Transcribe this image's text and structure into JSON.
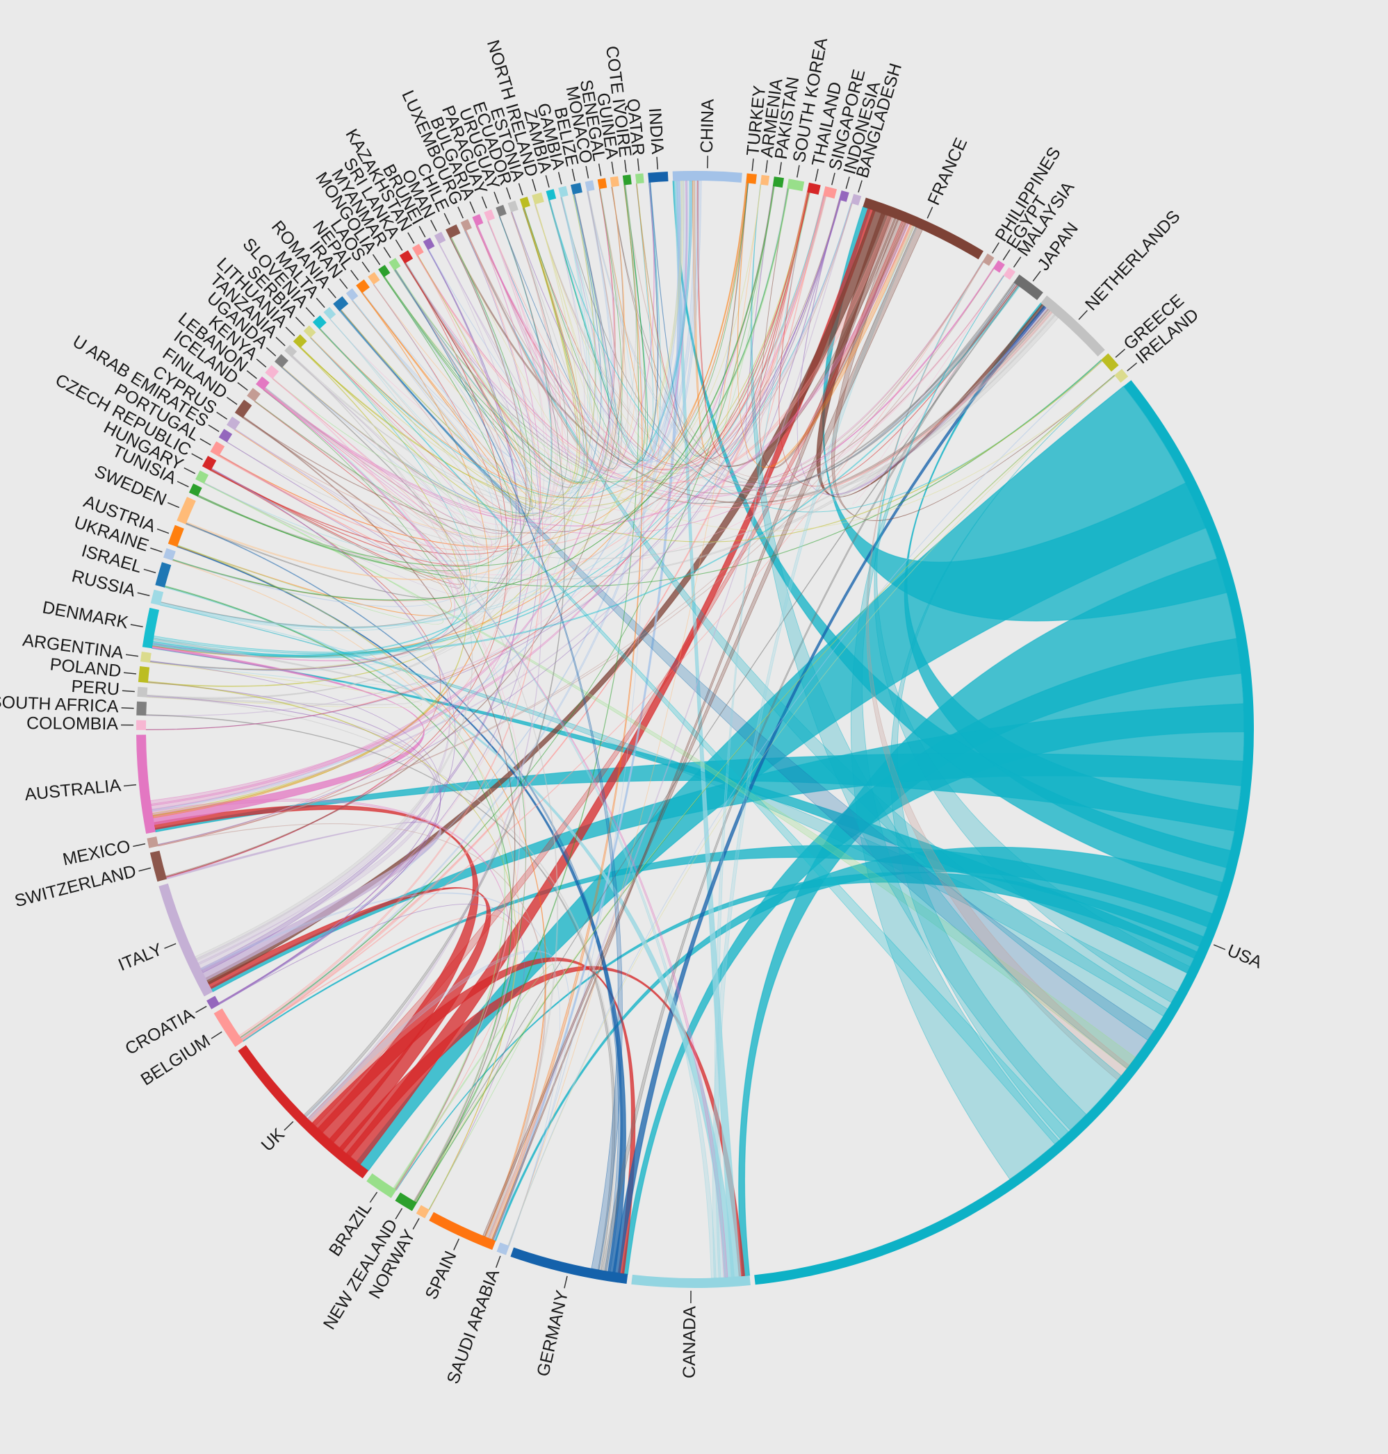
{
  "chart_data": {
    "type": "chord",
    "title": "",
    "nodes": [
      {
        "name": "USA",
        "color": "#0db1c6",
        "weight": 60
      },
      {
        "name": "CANADA",
        "color": "#93d5e1",
        "weight": 6
      },
      {
        "name": "GERMANY",
        "color": "#1562ab",
        "weight": 6
      },
      {
        "name": "SAUDI ARABIA",
        "color": "#aec7e8",
        "weight": 0.5
      },
      {
        "name": "SPAIN",
        "color": "#ff7410",
        "weight": 3.5
      },
      {
        "name": "NORWAY",
        "color": "#ffbb78",
        "weight": 0.5
      },
      {
        "name": "NEW ZEALAND",
        "color": "#2ca02c",
        "weight": 1
      },
      {
        "name": "BRAZIL",
        "color": "#98df8a",
        "weight": 1.5
      },
      {
        "name": "UK",
        "color": "#d62728",
        "weight": 9
      },
      {
        "name": "BELGIUM",
        "color": "#ff9896",
        "weight": 2
      },
      {
        "name": "CROATIA",
        "color": "#9467bd",
        "weight": 0.5
      },
      {
        "name": "ITALY",
        "color": "#c5b0d5",
        "weight": 6
      },
      {
        "name": "SWITZERLAND",
        "color": "#8c564b",
        "weight": 1.5
      },
      {
        "name": "MEXICO",
        "color": "#c49c94",
        "weight": 0.5
      },
      {
        "name": "AUSTRALIA",
        "color": "#e377c2",
        "weight": 5
      },
      {
        "name": "COLOMBIA",
        "color": "#f7b6d2",
        "weight": 0.5
      },
      {
        "name": "SOUTH AFRICA",
        "color": "#7f7f7f",
        "weight": 0.7
      },
      {
        "name": "PERU",
        "color": "#c7c7c7",
        "weight": 0.5
      },
      {
        "name": "POLAND",
        "color": "#bcbd22",
        "weight": 0.8
      },
      {
        "name": "ARGENTINA",
        "color": "#dbdb8d",
        "weight": 0.5
      },
      {
        "name": "DENMARK",
        "color": "#17becf",
        "weight": 2
      },
      {
        "name": "RUSSIA",
        "color": "#9edae5",
        "weight": 0.7
      },
      {
        "name": "ISRAEL",
        "color": "#1f77b4",
        "weight": 1.2
      },
      {
        "name": "UKRAINE",
        "color": "#aec7e8",
        "weight": 0.5
      },
      {
        "name": "AUSTRIA",
        "color": "#ff7f0e",
        "weight": 1
      },
      {
        "name": "SWEDEN",
        "color": "#ffbb78",
        "weight": 1.3
      },
      {
        "name": "TUNISIA",
        "color": "#2ca02c",
        "weight": 0.5
      },
      {
        "name": "HUNGARY",
        "color": "#98df8a",
        "weight": 0.5
      },
      {
        "name": "CZECH REPUBLIC",
        "color": "#d62728",
        "weight": 0.6
      },
      {
        "name": "PORTUGAL",
        "color": "#ff9896",
        "weight": 0.6
      },
      {
        "name": "U ARAB EMIRATES",
        "color": "#9467bd",
        "weight": 0.5
      },
      {
        "name": "CYPRUS",
        "color": "#c5b0d5",
        "weight": 0.5
      },
      {
        "name": "FINLAND",
        "color": "#8c564b",
        "weight": 0.8
      },
      {
        "name": "ICELAND",
        "color": "#c49c94",
        "weight": 0.5
      },
      {
        "name": "LEBANON",
        "color": "#e377c2",
        "weight": 0.5
      },
      {
        "name": "KENYA",
        "color": "#f7b6d2",
        "weight": 0.5
      },
      {
        "name": "UGANDA",
        "color": "#7f7f7f",
        "weight": 0.5
      },
      {
        "name": "TANZANIA",
        "color": "#c7c7c7",
        "weight": 0.4
      },
      {
        "name": "LITHUANIA",
        "color": "#bcbd22",
        "weight": 0.5
      },
      {
        "name": "SERBIA",
        "color": "#dbdb8d",
        "weight": 0.4
      },
      {
        "name": "SLOVENIA",
        "color": "#17becf",
        "weight": 0.5
      },
      {
        "name": "MALTA",
        "color": "#9edae5",
        "weight": 0.4
      },
      {
        "name": "ROMANIA",
        "color": "#1f77b4",
        "weight": 0.6
      },
      {
        "name": "IRAN",
        "color": "#aec7e8",
        "weight": 0.4
      },
      {
        "name": "NEPAL",
        "color": "#ff7f0e",
        "weight": 0.5
      },
      {
        "name": "LAOS",
        "color": "#ffbb78",
        "weight": 0.4
      },
      {
        "name": "MONGOLIA",
        "color": "#2ca02c",
        "weight": 0.4
      },
      {
        "name": "MYANMAR",
        "color": "#98df8a",
        "weight": 0.4
      },
      {
        "name": "SRI LANKA",
        "color": "#d62728",
        "weight": 0.5
      },
      {
        "name": "KAZAKHSTAN",
        "color": "#ff9896",
        "weight": 0.4
      },
      {
        "name": "BRUNEI",
        "color": "#9467bd",
        "weight": 0.4
      },
      {
        "name": "OMAN",
        "color": "#c5b0d5",
        "weight": 0.4
      },
      {
        "name": "CHILE",
        "color": "#8c564b",
        "weight": 0.6
      },
      {
        "name": "LUXEMBOURG",
        "color": "#c49c94",
        "weight": 0.4
      },
      {
        "name": "BULGARIA",
        "color": "#e377c2",
        "weight": 0.4
      },
      {
        "name": "PARAGUAY",
        "color": "#f7b6d2",
        "weight": 0.4
      },
      {
        "name": "URUGUAY",
        "color": "#7f7f7f",
        "weight": 0.4
      },
      {
        "name": "ECUADOR",
        "color": "#c7c7c7",
        "weight": 0.4
      },
      {
        "name": "ESTONIA",
        "color": "#bcbd22",
        "weight": 0.4
      },
      {
        "name": "NORTH IRELAND",
        "color": "#dbdb8d",
        "weight": 0.5
      },
      {
        "name": "ZAMBIA",
        "color": "#17becf",
        "weight": 0.4
      },
      {
        "name": "GAMBIA",
        "color": "#9edae5",
        "weight": 0.4
      },
      {
        "name": "BELIZE",
        "color": "#1f77b4",
        "weight": 0.5
      },
      {
        "name": "MONACO",
        "color": "#aec7e8",
        "weight": 0.4
      },
      {
        "name": "SENEGAL",
        "color": "#ff7f0e",
        "weight": 0.4
      },
      {
        "name": "GUINEA",
        "color": "#ffbb78",
        "weight": 0.4
      },
      {
        "name": "COTE IVOIRE",
        "color": "#2ca02c",
        "weight": 0.4
      },
      {
        "name": "QATAR",
        "color": "#98df8a",
        "weight": 0.4
      },
      {
        "name": "INDIA",
        "color": "#1562ab",
        "weight": 1
      },
      {
        "name": "CHINA",
        "color": "#a3c2e8",
        "weight": 3.5
      },
      {
        "name": "TURKEY",
        "color": "#ff7f0e",
        "weight": 0.5
      },
      {
        "name": "ARMENIA",
        "color": "#ffbb78",
        "weight": 0.4
      },
      {
        "name": "PAKISTAN",
        "color": "#2ca02c",
        "weight": 0.5
      },
      {
        "name": "SOUTH KOREA",
        "color": "#98df8a",
        "weight": 0.8
      },
      {
        "name": "THAILAND",
        "color": "#d62728",
        "weight": 0.6
      },
      {
        "name": "SINGAPORE",
        "color": "#ff9896",
        "weight": 0.6
      },
      {
        "name": "INDONESIA",
        "color": "#9467bd",
        "weight": 0.4
      },
      {
        "name": "BANGLADESH",
        "color": "#c5b0d5",
        "weight": 0.4
      },
      {
        "name": "FRANCE",
        "color": "#7d4236",
        "weight": 6.5
      },
      {
        "name": "PHILIPPINES",
        "color": "#c49c94",
        "weight": 0.4
      },
      {
        "name": "EGYPT",
        "color": "#e377c2",
        "weight": 0.4
      },
      {
        "name": "MALAYSIA",
        "color": "#f7b6d2",
        "weight": 0.4
      },
      {
        "name": "JAPAN",
        "color": "#6e6e6e",
        "weight": 1.5
      },
      {
        "name": "NETHERLANDS",
        "color": "#c2c2c2",
        "weight": 4
      },
      {
        "name": "GREECE",
        "color": "#bcbd22",
        "weight": 0.8
      },
      {
        "name": "IRELAND",
        "color": "#dbdb8d",
        "weight": 0.5
      }
    ]
  }
}
